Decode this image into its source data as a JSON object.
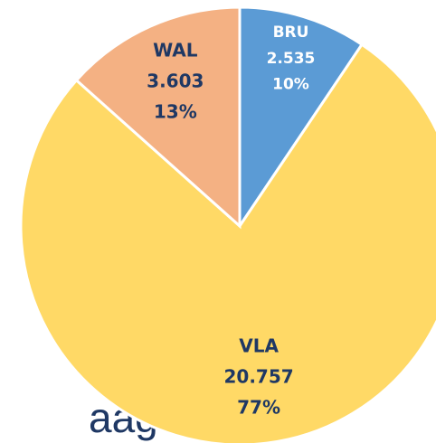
{
  "chart_data": {
    "type": "pie",
    "categories": [
      "BRU",
      "VLA",
      "WAL"
    ],
    "values": [
      2.535,
      20.757,
      3.603
    ],
    "percent_labels": [
      "10%",
      "77%",
      "13%"
    ],
    "colors": [
      "#5b9bd5",
      "#ffd966",
      "#f4b183"
    ],
    "start_angle": 0,
    "direction": "clockwise"
  },
  "footer_text": "aag"
}
